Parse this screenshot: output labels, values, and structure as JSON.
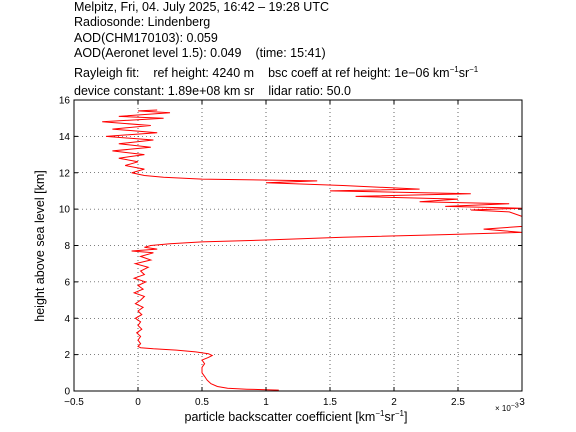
{
  "header": {
    "line1": "Melpitz, Fri, 04. July 2025, 16:42 – 19:28 UTC",
    "line2": "Radiosonde: Lindenberg",
    "line3": "AOD(CHM170103): 0.059",
    "line4a": "AOD(Aeronet level 1.5): 0.049",
    "line4b": "(time: 15:41)",
    "line5a": "Rayleigh fit:",
    "line5b": "ref height: 4240 m",
    "line5c_pre": "bsc coeff at ref height: 1e−06 km",
    "line5c_exp1": "−1",
    "line5c_mid": "sr",
    "line5c_exp2": "−1",
    "line6a": "device constant: 1.89e+08 km sr",
    "line6b": "lidar ratio: 50.0"
  },
  "chart_data": {
    "type": "line",
    "title": "",
    "xlabel_pre": "particle backscatter coefficient [km",
    "xlabel_exp1": "−1",
    "xlabel_mid": "sr",
    "xlabel_exp2": "−1",
    "xlabel_post": "]",
    "ylabel": "height above sea level [km]",
    "x_scale_label": "× 10",
    "x_scale_exp": "−3",
    "xlim": [
      -0.5,
      3
    ],
    "ylim": [
      0,
      16
    ],
    "xticks": [
      -0.5,
      0,
      0.5,
      1,
      1.5,
      2,
      2.5,
      3
    ],
    "xtick_labels": [
      "−0.5",
      "0",
      "0.5",
      "1",
      "1.5",
      "2",
      "2.5",
      "3"
    ],
    "yticks": [
      0,
      2,
      4,
      6,
      8,
      10,
      12,
      14,
      16
    ],
    "ytick_labels": [
      "0",
      "2",
      "4",
      "6",
      "8",
      "10",
      "12",
      "14",
      "16"
    ],
    "grid": true,
    "series": [
      {
        "color": "#ff0000",
        "points": [
          [
            1.1,
            0.05
          ],
          [
            0.85,
            0.1
          ],
          [
            0.7,
            0.15
          ],
          [
            0.62,
            0.25
          ],
          [
            0.57,
            0.4
          ],
          [
            0.54,
            0.6
          ],
          [
            0.52,
            0.8
          ],
          [
            0.5,
            1.0
          ],
          [
            0.5,
            1.3
          ],
          [
            0.52,
            1.5
          ],
          [
            0.5,
            1.7
          ],
          [
            0.55,
            1.85
          ],
          [
            0.58,
            1.95
          ],
          [
            0.55,
            2.05
          ],
          [
            0.45,
            2.15
          ],
          [
            0.3,
            2.25
          ],
          [
            0.12,
            2.32
          ],
          [
            0.02,
            2.38
          ],
          [
            0.0,
            2.45
          ],
          [
            0.02,
            2.6
          ],
          [
            0.0,
            2.8
          ],
          [
            0.02,
            3.0
          ],
          [
            -0.01,
            3.2
          ],
          [
            0.03,
            3.4
          ],
          [
            0.0,
            3.6
          ],
          [
            0.02,
            3.8
          ],
          [
            -0.02,
            4.0
          ],
          [
            0.03,
            4.2
          ],
          [
            0.0,
            4.4
          ],
          [
            0.04,
            4.6
          ],
          [
            -0.02,
            4.8
          ],
          [
            0.02,
            5.0
          ],
          [
            0.05,
            5.2
          ],
          [
            -0.03,
            5.4
          ],
          [
            0.04,
            5.6
          ],
          [
            0.0,
            5.8
          ],
          [
            0.06,
            6.0
          ],
          [
            -0.03,
            6.2
          ],
          [
            0.05,
            6.4
          ],
          [
            0.02,
            6.6
          ],
          [
            0.08,
            6.8
          ],
          [
            -0.02,
            7.0
          ],
          [
            0.1,
            7.2
          ],
          [
            0.02,
            7.4
          ],
          [
            0.12,
            7.6
          ],
          [
            -0.05,
            7.7
          ],
          [
            0.15,
            7.8
          ],
          [
            0.05,
            7.9
          ],
          [
            0.1,
            8.0
          ],
          [
            0.25,
            8.1
          ],
          [
            0.5,
            8.2
          ],
          [
            1.0,
            8.3
          ],
          [
            1.6,
            8.45
          ],
          [
            2.4,
            8.6
          ],
          [
            3.0,
            8.72
          ],
          [
            2.7,
            8.9
          ],
          [
            3.0,
            9.05
          ],
          [
            3.0,
            9.6
          ],
          [
            2.9,
            9.85
          ],
          [
            2.6,
            9.95
          ],
          [
            3.0,
            10.05
          ],
          [
            2.4,
            10.15
          ],
          [
            2.9,
            10.3
          ],
          [
            2.2,
            10.4
          ],
          [
            2.5,
            10.55
          ],
          [
            1.7,
            10.7
          ],
          [
            2.6,
            10.85
          ],
          [
            1.5,
            11.0
          ],
          [
            2.2,
            11.1
          ],
          [
            1.6,
            11.3
          ],
          [
            1.0,
            11.45
          ],
          [
            1.4,
            11.55
          ],
          [
            0.5,
            11.65
          ],
          [
            0.2,
            11.75
          ],
          [
            0.05,
            11.85
          ],
          [
            -0.05,
            12.0
          ],
          [
            0.05,
            12.2
          ],
          [
            -0.1,
            12.4
          ],
          [
            0.0,
            12.6
          ],
          [
            -0.15,
            12.8
          ],
          [
            0.05,
            13.0
          ],
          [
            -0.2,
            13.2
          ],
          [
            0.1,
            13.4
          ],
          [
            -0.15,
            13.6
          ],
          [
            0.12,
            13.8
          ],
          [
            -0.25,
            14.0
          ],
          [
            0.15,
            14.2
          ],
          [
            -0.2,
            14.4
          ],
          [
            0.1,
            14.6
          ],
          [
            -0.28,
            14.8
          ],
          [
            0.2,
            15.0
          ],
          [
            -0.15,
            15.1
          ],
          [
            0.25,
            15.3
          ],
          [
            0.0,
            15.4
          ],
          [
            0.15,
            15.45
          ]
        ]
      }
    ]
  }
}
